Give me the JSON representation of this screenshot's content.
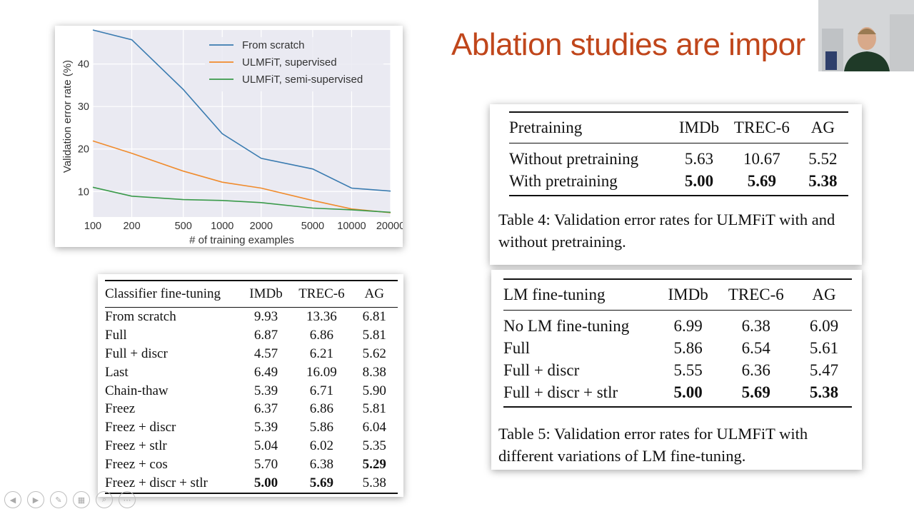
{
  "slide_title": "Ablation studies are impor",
  "chart_data": {
    "type": "line",
    "x_scale": "log",
    "x": [
      100,
      200,
      500,
      1000,
      2000,
      5000,
      10000,
      20000
    ],
    "xticks": [
      "100",
      "200",
      "500",
      "1000",
      "2000",
      "5000",
      "10000",
      "20000"
    ],
    "yticks": [
      10,
      20,
      30,
      40
    ],
    "ylim": [
      4,
      48
    ],
    "xlabel": "# of training examples",
    "ylabel": "Validation error rate (%)",
    "grid": true,
    "legend_position": "top-right",
    "series": [
      {
        "name": "From scratch",
        "color": "#3a7bb0",
        "values": [
          48.0,
          45.7,
          34.0,
          23.6,
          17.8,
          15.3,
          10.8,
          10.1
        ]
      },
      {
        "name": "ULMFiT, supervised",
        "color": "#f08b2c",
        "values": [
          21.9,
          19.0,
          14.8,
          12.2,
          10.8,
          7.9,
          5.9,
          5.0
        ]
      },
      {
        "name": "ULMFiT, semi-supervised",
        "color": "#3a9a4a",
        "values": [
          11.0,
          8.9,
          8.1,
          7.9,
          7.4,
          6.1,
          5.7,
          5.1
        ]
      }
    ]
  },
  "table_ft": {
    "headers": [
      "Classifier fine-tuning",
      "IMDb",
      "TREC-6",
      "AG"
    ],
    "rows": [
      [
        "From scratch",
        "9.93",
        "13.36",
        "6.81"
      ],
      [
        "Full",
        "6.87",
        "6.86",
        "5.81"
      ],
      [
        "Full + discr",
        "4.57",
        "6.21",
        "5.62"
      ],
      [
        "Last",
        "6.49",
        "16.09",
        "8.38"
      ],
      [
        "Chain-thaw",
        "5.39",
        "6.71",
        "5.90"
      ],
      [
        "Freez",
        "6.37",
        "6.86",
        "5.81"
      ],
      [
        "Freez + discr",
        "5.39",
        "5.86",
        "6.04"
      ],
      [
        "Freez + stlr",
        "5.04",
        "6.02",
        "5.35"
      ],
      [
        "Freez + cos",
        "5.70",
        "6.38",
        "5.29"
      ],
      [
        "Freez + discr + stlr",
        "5.00",
        "5.69",
        "5.38"
      ]
    ]
  },
  "table_pre": {
    "headers": [
      "Pretraining",
      "IMDb",
      "TREC-6",
      "AG"
    ],
    "rows": [
      [
        "Without pretraining",
        "5.63",
        "10.67",
        "5.52"
      ],
      [
        "With pretraining",
        "5.00",
        "5.69",
        "5.38"
      ]
    ],
    "caption": "Table 4:  Validation error rates for ULMFiT with and without pretraining."
  },
  "table_lm": {
    "headers": [
      "LM fine-tuning",
      "IMDb",
      "TREC-6",
      "AG"
    ],
    "rows": [
      [
        "No LM fine-tuning",
        "6.99",
        "6.38",
        "6.09"
      ],
      [
        "Full",
        "5.86",
        "6.54",
        "5.61"
      ],
      [
        "Full + discr",
        "5.55",
        "6.36",
        "5.47"
      ],
      [
        "Full + discr + stlr",
        "5.00",
        "5.69",
        "5.38"
      ]
    ],
    "caption": "Table 5:  Validation error rates for ULMFiT with different variations of LM fine-tuning."
  }
}
